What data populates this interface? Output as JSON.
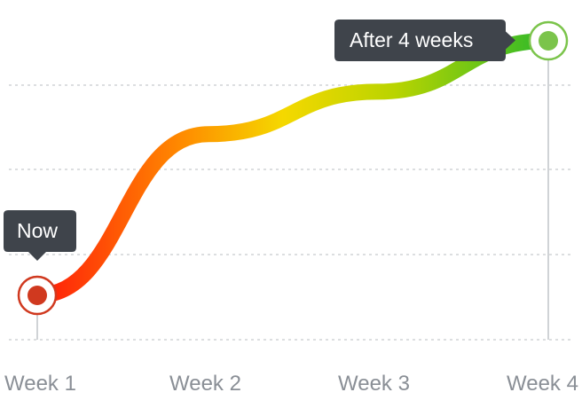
{
  "chart_data": {
    "type": "line",
    "categories": [
      "Week 1",
      "Week 2",
      "Week 3",
      "Week 4"
    ],
    "values": [
      0,
      1.9,
      2.4,
      3.0
    ],
    "ylim": [
      0,
      3.0
    ],
    "grid": true,
    "annotations": [
      {
        "label": "Now",
        "category": "Week 1",
        "marker_color": "#d0391f"
      },
      {
        "label": "After 4 weeks",
        "category": "Week 4",
        "marker_color": "#7bc44b"
      }
    ]
  },
  "colors": {
    "gradient": [
      "#ff1a0a",
      "#ff8a00",
      "#f5d800",
      "#b9d400",
      "#2db92a"
    ],
    "tooltip_bg": "#3f444b",
    "gridline": "#d0d3d6",
    "axis_text": "#8a8f96"
  }
}
